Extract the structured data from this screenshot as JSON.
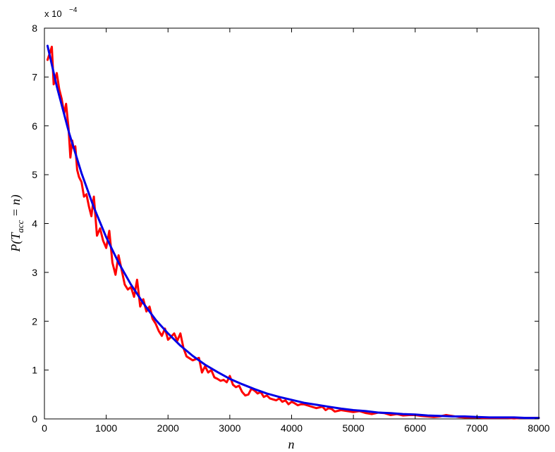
{
  "chart_data": {
    "type": "line",
    "title": "",
    "xlabel": "n",
    "ylabel": "P(T_acc = n)",
    "ylabel_parts": {
      "prefix": "P(T",
      "subscript": "acc",
      "suffix": " = n)"
    },
    "y_multiplier_base": "x 10",
    "y_multiplier_exponent": "−4",
    "xlim": [
      0,
      8000
    ],
    "ylim": [
      0,
      8
    ],
    "x_ticks": [
      0,
      1000,
      2000,
      3000,
      4000,
      5000,
      6000,
      7000,
      8000
    ],
    "y_ticks": [
      0,
      1,
      2,
      3,
      4,
      5,
      6,
      7,
      8
    ],
    "grid": false,
    "legend": "none",
    "series": [
      {
        "color": "#ff0000",
        "line_width": 3,
        "x": [
          50,
          120,
          150,
          200,
          240,
          280,
          320,
          350,
          390,
          420,
          450,
          470,
          500,
          530,
          560,
          600,
          640,
          680,
          720,
          760,
          800,
          850,
          900,
          950,
          1000,
          1050,
          1100,
          1150,
          1200,
          1250,
          1300,
          1350,
          1400,
          1450,
          1500,
          1550,
          1600,
          1650,
          1700,
          1750,
          1800,
          1850,
          1900,
          1950,
          2000,
          2050,
          2100,
          2150,
          2200,
          2250,
          2300,
          2400,
          2500,
          2550,
          2600,
          2650,
          2700,
          2750,
          2800,
          2850,
          2900,
          2950,
          3000,
          3050,
          3100,
          3150,
          3200,
          3250,
          3300,
          3350,
          3400,
          3450,
          3500,
          3550,
          3600,
          3650,
          3700,
          3750,
          3800,
          3850,
          3900,
          3950,
          4000,
          4050,
          4100,
          4150,
          4200,
          4300,
          4400,
          4500,
          4550,
          4600,
          4650,
          4700,
          4800,
          4900,
          5000,
          5100,
          5200,
          5300,
          5400,
          5500,
          5600,
          5700,
          5800,
          5900,
          6000,
          6100,
          6200,
          6300,
          6400,
          6500,
          6600,
          6700,
          6800,
          6900,
          7000,
          7100,
          7200,
          7300,
          7400,
          7500,
          7600,
          7700,
          7800,
          7900,
          8000
        ],
        "y": [
          7.35,
          7.62,
          6.85,
          7.08,
          6.75,
          6.55,
          6.25,
          6.45,
          5.95,
          5.35,
          5.7,
          5.55,
          5.58,
          5.1,
          4.95,
          4.85,
          4.55,
          4.6,
          4.35,
          4.15,
          4.55,
          3.75,
          3.9,
          3.65,
          3.5,
          3.85,
          3.2,
          2.95,
          3.35,
          3.05,
          2.75,
          2.65,
          2.7,
          2.5,
          2.85,
          2.3,
          2.45,
          2.2,
          2.3,
          2.05,
          1.95,
          1.8,
          1.7,
          1.85,
          1.62,
          1.68,
          1.75,
          1.6,
          1.75,
          1.45,
          1.28,
          1.2,
          1.25,
          0.95,
          1.08,
          0.95,
          1.0,
          0.85,
          0.82,
          0.78,
          0.8,
          0.75,
          0.88,
          0.7,
          0.65,
          0.68,
          0.55,
          0.48,
          0.5,
          0.62,
          0.58,
          0.52,
          0.55,
          0.45,
          0.48,
          0.42,
          0.4,
          0.38,
          0.42,
          0.35,
          0.38,
          0.3,
          0.35,
          0.32,
          0.28,
          0.3,
          0.3,
          0.26,
          0.22,
          0.25,
          0.18,
          0.22,
          0.2,
          0.15,
          0.18,
          0.16,
          0.14,
          0.16,
          0.12,
          0.1,
          0.13,
          0.12,
          0.08,
          0.1,
          0.07,
          0.08,
          0.08,
          0.06,
          0.05,
          0.04,
          0.05,
          0.08,
          0.06,
          0.04,
          0.03,
          0.03,
          0.03,
          0.02,
          0.02,
          0.02,
          0.02,
          0.02,
          0.01,
          0.02,
          0.02,
          0.02,
          0.02
        ]
      },
      {
        "color": "#0000e6",
        "line_width": 3,
        "x": [
          50,
          200,
          400,
          600,
          800,
          1000,
          1200,
          1400,
          1600,
          1800,
          2000,
          2200,
          2400,
          2600,
          2800,
          3000,
          3200,
          3400,
          3600,
          3800,
          4000,
          4200,
          4400,
          4600,
          4800,
          5000,
          5200,
          5400,
          5600,
          5800,
          6000,
          6200,
          6400,
          6600,
          6800,
          7000,
          7200,
          7400,
          7600,
          7800,
          8000
        ],
        "y": [
          7.64,
          6.81,
          5.85,
          5.03,
          4.33,
          3.72,
          3.2,
          2.75,
          2.37,
          2.03,
          1.75,
          1.5,
          1.29,
          1.11,
          0.96,
          0.82,
          0.71,
          0.61,
          0.52,
          0.45,
          0.39,
          0.33,
          0.29,
          0.25,
          0.21,
          0.18,
          0.16,
          0.13,
          0.12,
          0.1,
          0.09,
          0.07,
          0.06,
          0.05,
          0.05,
          0.04,
          0.03,
          0.03,
          0.03,
          0.02,
          0.02
        ]
      }
    ]
  }
}
